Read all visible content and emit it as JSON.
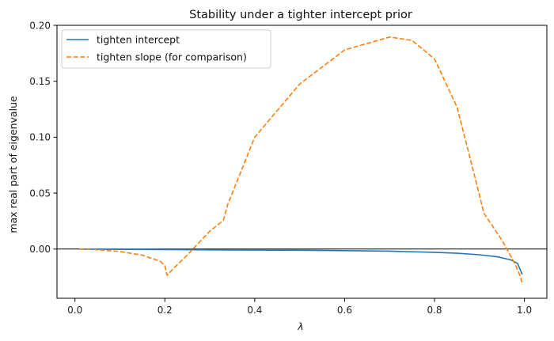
{
  "chart_data": {
    "type": "line",
    "title": "Stability under a tighter intercept prior",
    "xlabel": "λ",
    "ylabel": "max real part of eigenvalue",
    "xlim": [
      -0.04,
      1.05
    ],
    "ylim": [
      -0.044,
      0.2
    ],
    "xticks": [
      0.0,
      0.2,
      0.4,
      0.6,
      0.8,
      1.0
    ],
    "xtick_labels": [
      "0.0",
      "0.2",
      "0.4",
      "0.6",
      "0.8",
      "1.0"
    ],
    "yticks": [
      0.0,
      0.05,
      0.1,
      0.15,
      0.2
    ],
    "ytick_labels": [
      "0.00",
      "0.05",
      "0.10",
      "0.15",
      "0.20"
    ],
    "hline": 0.0,
    "grid": false,
    "legend_position": "upper-left",
    "series": [
      {
        "name": "tighten intercept",
        "color": "#1f77b4",
        "style": "solid",
        "x": [
          0.01,
          0.1,
          0.2,
          0.3,
          0.4,
          0.5,
          0.6,
          0.7,
          0.8,
          0.85,
          0.9,
          0.94,
          0.97,
          0.985,
          0.995
        ],
        "y": [
          0.0,
          -0.0003,
          -0.0005,
          -0.0007,
          -0.0009,
          -0.0011,
          -0.0014,
          -0.0019,
          -0.0029,
          -0.0037,
          -0.0051,
          -0.0069,
          -0.0097,
          -0.0129,
          -0.0227
        ]
      },
      {
        "name": "tighten slope (for comparison)",
        "color": "#ff7f0e",
        "style": "dashed",
        "x": [
          0.01,
          0.05,
          0.1,
          0.15,
          0.19,
          0.2,
          0.205,
          0.22,
          0.25,
          0.3,
          0.33,
          0.34,
          0.4,
          0.5,
          0.6,
          0.7,
          0.75,
          0.8,
          0.85,
          0.88,
          0.91,
          0.92,
          0.95,
          0.98,
          0.99,
          0.995,
          0.998
        ],
        "y": [
          0.0,
          -0.0006,
          -0.0022,
          -0.0055,
          -0.011,
          -0.0148,
          -0.0235,
          -0.017,
          -0.0053,
          0.016,
          0.0255,
          0.04,
          0.1,
          0.1475,
          0.178,
          0.1895,
          0.1865,
          0.17,
          0.127,
          0.08,
          0.032,
          0.026,
          0.008,
          -0.014,
          -0.0235,
          -0.03,
          -0.029
        ]
      }
    ]
  }
}
